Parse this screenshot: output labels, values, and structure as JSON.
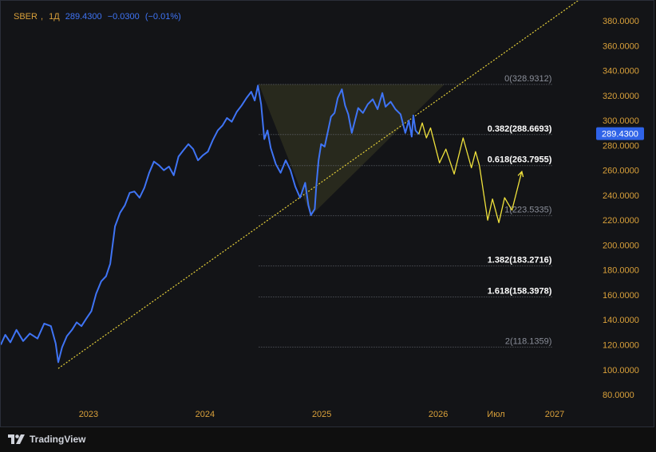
{
  "header": {
    "symbol": "SBER",
    "interval": "1Д",
    "price": "289.4300",
    "change": "−0.0300",
    "change_pct": "(−0.01%)"
  },
  "brand": {
    "name": "TradingView",
    "logo_icon": "tradingview-logo-icon"
  },
  "colors": {
    "background": "#131417",
    "price_line": "#3f74f5",
    "projection": "#f0e23c",
    "trendline": "#e6d03a",
    "axis_text": "#d9a03a",
    "fib_zone": "#3a3a22",
    "price_tag": "#2f63e8"
  },
  "chart_data": {
    "type": "line",
    "title": "",
    "xlabel": "",
    "ylabel": "",
    "x_ticks": [
      "2023",
      "2024",
      "2025",
      "2026",
      "Июл",
      "2027"
    ],
    "y_ticks": [
      "80.0000",
      "100.0000",
      "120.0000",
      "140.0000",
      "160.0000",
      "180.0000",
      "200.0000",
      "220.0000",
      "240.0000",
      "260.0000",
      "280.0000",
      "300.0000",
      "320.0000",
      "340.0000",
      "360.0000",
      "380.0000"
    ],
    "ylim": [
      73,
      396
    ],
    "xlim": [
      "2022-04-01",
      "2027-05-01"
    ],
    "last_price_label": "289.4300",
    "series": [
      {
        "kind": "price",
        "points": [
          [
            "2022-04-01",
            120
          ],
          [
            "2022-04-15",
            128
          ],
          [
            "2022-05-01",
            122
          ],
          [
            "2022-05-20",
            132
          ],
          [
            "2022-06-10",
            123
          ],
          [
            "2022-07-01",
            129
          ],
          [
            "2022-07-25",
            125
          ],
          [
            "2022-08-15",
            137
          ],
          [
            "2022-09-05",
            135
          ],
          [
            "2022-09-20",
            121
          ],
          [
            "2022-09-28",
            106
          ],
          [
            "2022-10-10",
            118
          ],
          [
            "2022-10-25",
            127
          ],
          [
            "2022-11-10",
            132
          ],
          [
            "2022-11-25",
            138
          ],
          [
            "2022-12-10",
            135
          ],
          [
            "2022-12-25",
            141
          ],
          [
            "2023-01-10",
            147
          ],
          [
            "2023-01-25",
            161
          ],
          [
            "2023-02-10",
            171
          ],
          [
            "2023-02-25",
            175
          ],
          [
            "2023-03-10",
            185
          ],
          [
            "2023-03-25",
            215
          ],
          [
            "2023-04-10",
            226
          ],
          [
            "2023-04-25",
            232
          ],
          [
            "2023-05-10",
            242
          ],
          [
            "2023-05-25",
            243
          ],
          [
            "2023-06-10",
            238
          ],
          [
            "2023-06-25",
            246
          ],
          [
            "2023-07-10",
            258
          ],
          [
            "2023-07-25",
            267
          ],
          [
            "2023-08-10",
            264
          ],
          [
            "2023-08-25",
            260
          ],
          [
            "2023-09-10",
            263
          ],
          [
            "2023-09-25",
            256
          ],
          [
            "2023-10-10",
            271
          ],
          [
            "2023-10-25",
            276
          ],
          [
            "2023-11-10",
            281
          ],
          [
            "2023-11-25",
            277
          ],
          [
            "2023-12-10",
            268
          ],
          [
            "2023-12-25",
            272
          ],
          [
            "2024-01-10",
            275
          ],
          [
            "2024-01-25",
            284
          ],
          [
            "2024-02-10",
            292
          ],
          [
            "2024-02-25",
            296
          ],
          [
            "2024-03-10",
            302
          ],
          [
            "2024-03-25",
            299
          ],
          [
            "2024-04-10",
            307
          ],
          [
            "2024-04-25",
            312
          ],
          [
            "2024-05-10",
            318
          ],
          [
            "2024-05-25",
            323
          ],
          [
            "2024-06-05",
            316
          ],
          [
            "2024-06-15",
            328
          ],
          [
            "2024-06-25",
            313
          ],
          [
            "2024-07-05",
            285
          ],
          [
            "2024-07-15",
            292
          ],
          [
            "2024-07-25",
            278
          ],
          [
            "2024-08-10",
            265
          ],
          [
            "2024-08-25",
            258
          ],
          [
            "2024-09-10",
            268
          ],
          [
            "2024-09-25",
            260
          ],
          [
            "2024-10-10",
            247
          ],
          [
            "2024-10-25",
            238
          ],
          [
            "2024-11-10",
            250
          ],
          [
            "2024-11-20",
            232
          ],
          [
            "2024-11-28",
            224
          ],
          [
            "2024-12-10",
            229
          ],
          [
            "2024-12-15",
            248
          ],
          [
            "2024-12-22",
            268
          ],
          [
            "2024-12-30",
            281
          ],
          [
            "2025-01-10",
            279
          ],
          [
            "2025-01-20",
            291
          ],
          [
            "2025-01-30",
            303
          ],
          [
            "2025-02-10",
            306
          ],
          [
            "2025-02-20",
            318
          ],
          [
            "2025-03-05",
            325
          ],
          [
            "2025-03-15",
            312
          ],
          [
            "2025-03-25",
            305
          ],
          [
            "2025-04-05",
            290
          ],
          [
            "2025-04-15",
            300
          ],
          [
            "2025-04-25",
            310
          ],
          [
            "2025-05-10",
            306
          ],
          [
            "2025-05-25",
            313
          ],
          [
            "2025-06-10",
            317
          ],
          [
            "2025-06-25",
            309
          ],
          [
            "2025-07-10",
            322
          ],
          [
            "2025-07-20",
            311
          ],
          [
            "2025-08-05",
            315
          ],
          [
            "2025-08-20",
            309
          ],
          [
            "2025-09-05",
            305
          ],
          [
            "2025-09-20",
            290
          ],
          [
            "2025-10-01",
            300
          ],
          [
            "2025-10-10",
            287
          ],
          [
            "2025-10-15",
            304
          ],
          [
            "2025-10-22",
            292
          ],
          [
            "2025-11-01",
            289
          ]
        ]
      },
      {
        "kind": "projection",
        "points": [
          [
            "2025-11-01",
            289
          ],
          [
            "2025-11-12",
            298
          ],
          [
            "2025-11-25",
            286
          ],
          [
            "2025-12-08",
            294
          ],
          [
            "2026-01-05",
            266
          ],
          [
            "2026-01-25",
            277
          ],
          [
            "2026-02-20",
            257
          ],
          [
            "2026-03-20",
            286
          ],
          [
            "2026-04-15",
            262
          ],
          [
            "2026-04-28",
            275
          ],
          [
            "2026-05-10",
            264
          ],
          [
            "2026-06-05",
            220
          ],
          [
            "2026-06-20",
            237
          ],
          [
            "2026-07-10",
            218
          ],
          [
            "2026-07-28",
            238
          ],
          [
            "2026-08-20",
            228
          ],
          [
            "2026-09-20",
            259
          ]
        ]
      }
    ],
    "trendline": [
      [
        "2022-09-28",
        101
      ],
      [
        "2027-03-20",
        397
      ]
    ],
    "fib_zone": [
      [
        "2024-06-18",
        328.9312
      ],
      [
        "2026-01-20",
        328.9312
      ],
      [
        "2024-11-28",
        223.5335
      ]
    ],
    "fib_levels": [
      {
        "ratio": "0",
        "value": "328.9312",
        "level": 328.9312,
        "label": "0(328.9312)",
        "emphasis": false
      },
      {
        "ratio": "0.382",
        "value": "288.6693",
        "level": 288.6693,
        "label": "0.382(288.6693)",
        "emphasis": true
      },
      {
        "ratio": "0.618",
        "value": "263.7955",
        "level": 263.7955,
        "label": "0.618(263.7955)",
        "emphasis": true
      },
      {
        "ratio": "1",
        "value": "223.5335",
        "level": 223.5335,
        "label": "1(223.5335)",
        "emphasis": false
      },
      {
        "ratio": "1.382",
        "value": "183.2716",
        "level": 183.2716,
        "label": "1.382(183.2716)",
        "emphasis": true
      },
      {
        "ratio": "1.618",
        "value": "158.3978",
        "level": 158.3978,
        "label": "1.618(158.3978)",
        "emphasis": true
      },
      {
        "ratio": "2",
        "value": "118.1359",
        "level": 118.1359,
        "label": "2(118.1359)",
        "emphasis": false
      }
    ],
    "fib_line_start": "2024-06-18",
    "fib_line_end": "2026-12-28",
    "grid": false,
    "legend": "none"
  }
}
